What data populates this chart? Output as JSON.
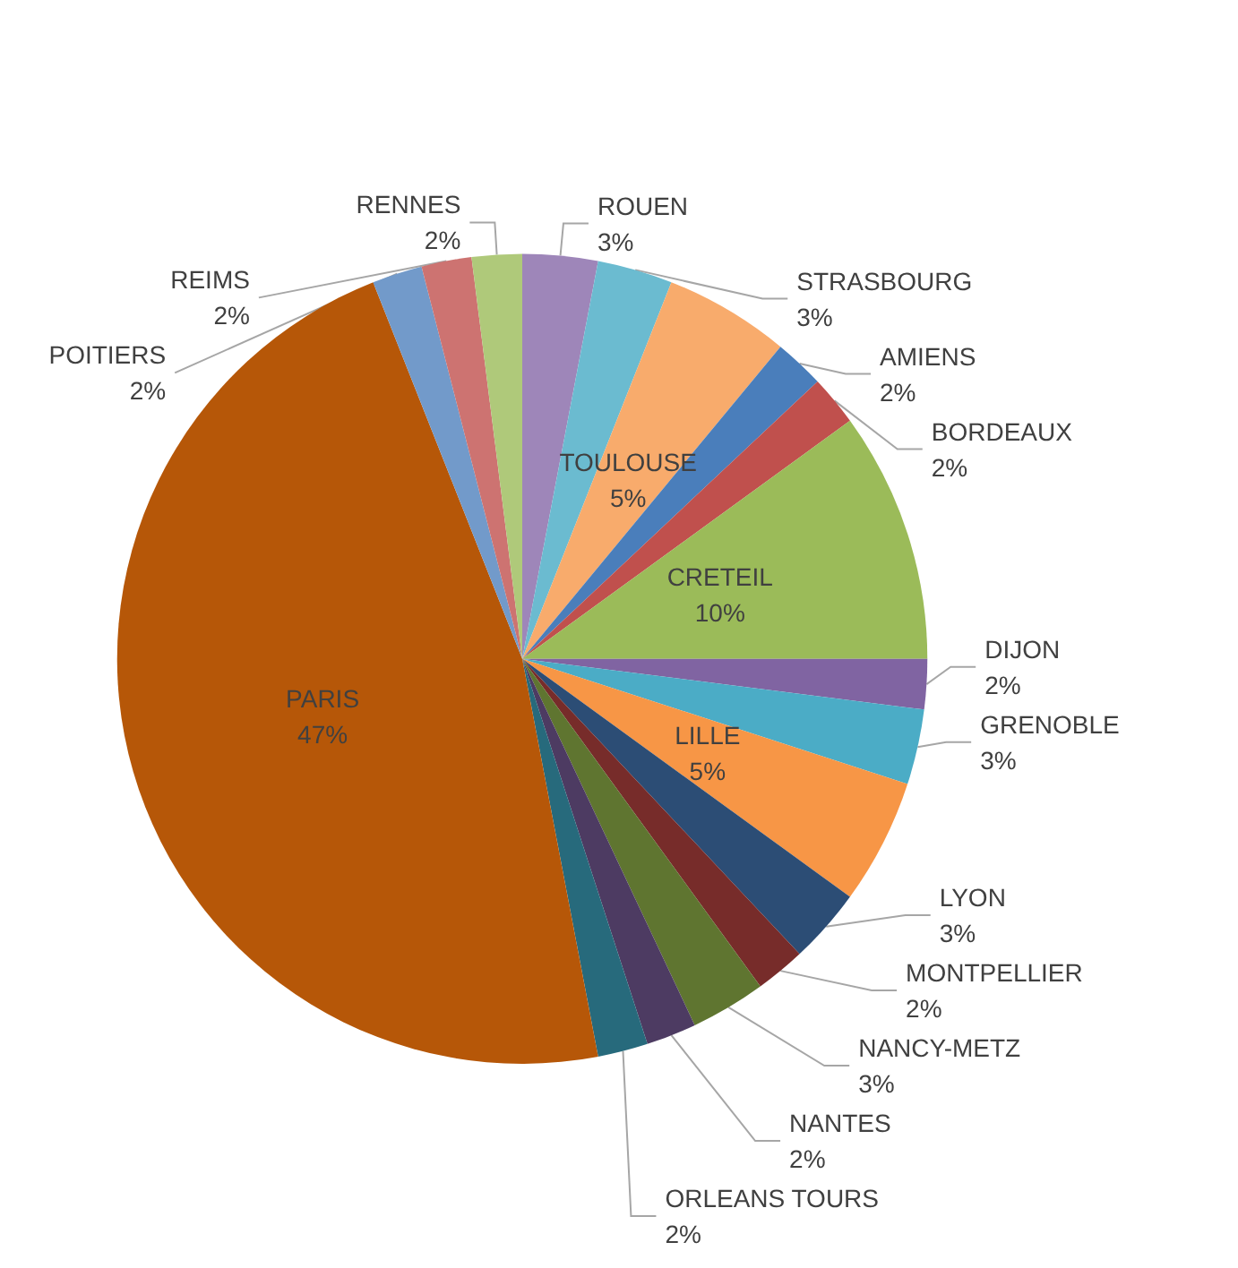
{
  "chart_data": {
    "type": "pie",
    "categories": [
      "ROUEN",
      "STRASBOURG",
      "TOULOUSE",
      "AMIENS",
      "BORDEAUX",
      "CRETEIL",
      "DIJON",
      "GRENOBLE",
      "LILLE",
      "LYON",
      "MONTPELLIER",
      "NANCY-METZ",
      "NANTES",
      "ORLEANS TOURS",
      "PARIS",
      "POITIERS",
      "REIMS",
      "RENNES"
    ],
    "values": [
      3,
      3,
      5,
      2,
      2,
      10,
      2,
      3,
      5,
      3,
      2,
      3,
      2,
      2,
      47,
      2,
      2,
      2
    ],
    "value_labels": [
      "3%",
      "3%",
      "5%",
      "2%",
      "2%",
      "10%",
      "2%",
      "3%",
      "5%",
      "3%",
      "2%",
      "3%",
      "2%",
      "2%",
      "47%",
      "2%",
      "2%",
      "2%"
    ],
    "colors": [
      "#9e86b9",
      "#6bbbd0",
      "#f8ab6c",
      "#4a7ebb",
      "#c0504d",
      "#9bbb59",
      "#8064a2",
      "#4bacc6",
      "#f79646",
      "#2c4d75",
      "#772c2a",
      "#5f7530",
      "#4d3b62",
      "#276a7c",
      "#b65708",
      "#729aca",
      "#cd7371",
      "#afc97a"
    ],
    "legend": false
  }
}
